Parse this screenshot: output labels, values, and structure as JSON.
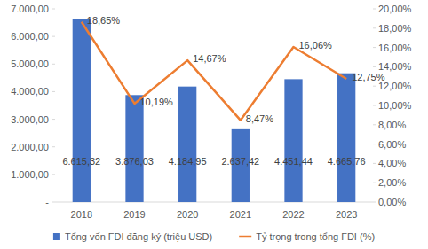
{
  "chart_data": {
    "type": "bar",
    "categories": [
      "2018",
      "2019",
      "2020",
      "2021",
      "2022",
      "2023"
    ],
    "series": [
      {
        "name": "Tổng vốn FDI đăng ký (triệu USD)",
        "type": "bar",
        "color": "#4472c4",
        "values": [
          6615.32,
          3876.03,
          4184.95,
          2637.42,
          4451.44,
          4665.76
        ],
        "value_labels": [
          "6.615,32",
          "3.876,03",
          "4.184,95",
          "2.637,42",
          "4.451,44",
          "4.665,76"
        ]
      },
      {
        "name": "Tỷ trọng trong tổng FDI (%)",
        "type": "line",
        "axis": "y2",
        "color": "#ed7d31",
        "marker": "none",
        "values": [
          18.65,
          10.19,
          14.67,
          8.47,
          16.06,
          12.75
        ],
        "value_labels": [
          "18,65%",
          "10,19%",
          "14,67%",
          "8,47%",
          "16,06%",
          "12,75%"
        ]
      }
    ],
    "ylim": [
      0,
      7000
    ],
    "yticks": [
      {
        "value": 0,
        "label": "-"
      },
      {
        "value": 1000,
        "label": "1.000,00"
      },
      {
        "value": 2000,
        "label": "2.000,00"
      },
      {
        "value": 3000,
        "label": "3.000,00"
      },
      {
        "value": 4000,
        "label": "4.000,00"
      },
      {
        "value": 5000,
        "label": "5.000,00"
      },
      {
        "value": 6000,
        "label": "6.000,00"
      },
      {
        "value": 7000,
        "label": "7.000,00"
      }
    ],
    "y2lim": [
      0,
      20
    ],
    "y2ticks": [
      {
        "value": 0,
        "label": "0,00%"
      },
      {
        "value": 2,
        "label": "2,00%"
      },
      {
        "value": 4,
        "label": "4,00%"
      },
      {
        "value": 6,
        "label": "6,00%"
      },
      {
        "value": 8,
        "label": "8,00%"
      },
      {
        "value": 10,
        "label": "10,00%"
      },
      {
        "value": 12,
        "label": "12,00%"
      },
      {
        "value": 14,
        "label": "14,00%"
      },
      {
        "value": 16,
        "label": "16,00%"
      },
      {
        "value": 18,
        "label": "18,00%"
      },
      {
        "value": 20,
        "label": "20,00%"
      }
    ],
    "grid": false,
    "legend": "bottom",
    "data_labels": true
  }
}
